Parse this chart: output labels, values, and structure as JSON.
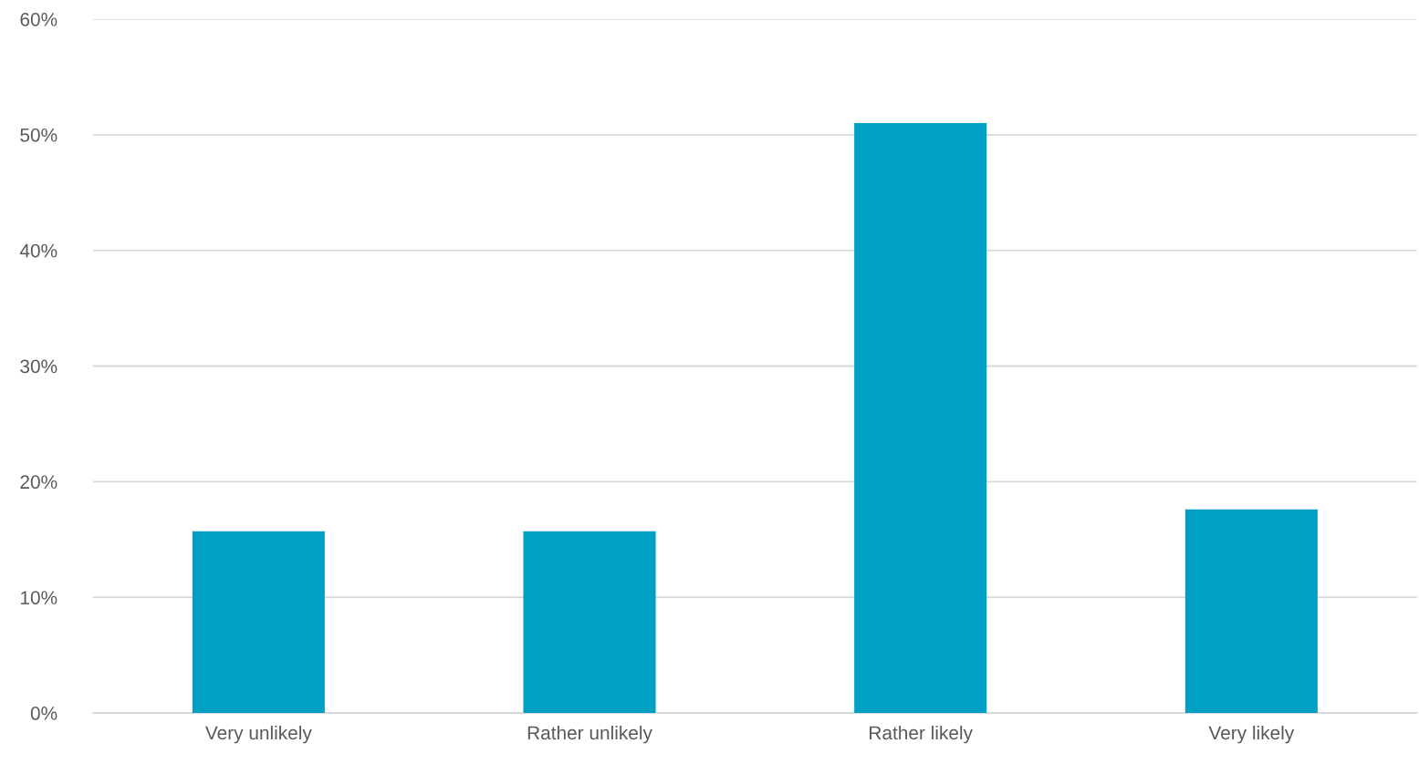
{
  "chart_data": {
    "type": "bar",
    "categories": [
      "Very unlikely",
      "Rather unlikely",
      "Rather likely",
      "Very likely"
    ],
    "values": [
      15.7,
      15.7,
      51.0,
      17.6
    ],
    "color": "#00a0c4",
    "ylim": [
      0,
      60
    ],
    "yticks": [
      {
        "value": 0,
        "label": "0%"
      },
      {
        "value": 10,
        "label": "10%"
      },
      {
        "value": 20,
        "label": "20%"
      },
      {
        "value": 30,
        "label": "30%"
      },
      {
        "value": 40,
        "label": "40%"
      },
      {
        "value": 50,
        "label": "50%"
      },
      {
        "value": 60,
        "label": "60%"
      }
    ],
    "grid": "y",
    "legend": false
  }
}
